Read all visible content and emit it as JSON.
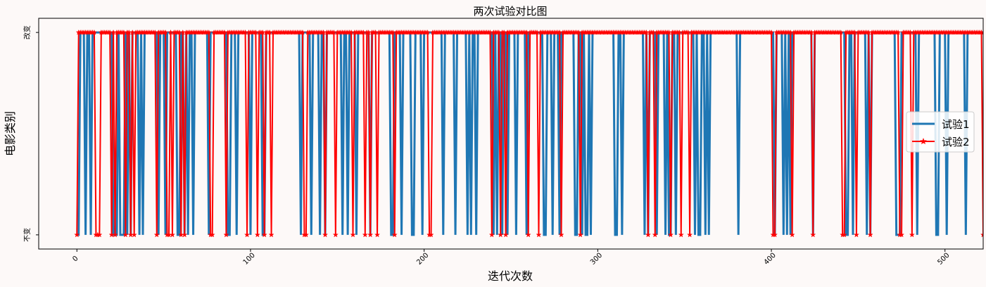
{
  "chart_data": {
    "type": "line",
    "title": "两次试验对比图",
    "xlabel": "迭代次数",
    "ylabel": "电影类别",
    "xlim": [
      -22,
      522
    ],
    "ylim": [
      -0.07,
      1.07
    ],
    "x_ticks": [
      0,
      100,
      200,
      300,
      400,
      500
    ],
    "y_ticks": [
      {
        "value": 0,
        "label": "不变"
      },
      {
        "value": 1,
        "label": "改变"
      }
    ],
    "legend_position": "center-right",
    "grid": false,
    "x_start": 0,
    "x_step": 1,
    "series": [
      {
        "name": "试验1",
        "color": "#1f77b4",
        "marker": "none",
        "values_bitstring": "0011101101111111111110001000101011110101111111101110111111001101011011111111011111111110011101111111011111100111111111111111111110111110111101101111111110110111101111111011111111111001111011111001111011111111111011111101111110101101111111110101101101111011111011111111100111011101111111100110100101111111111111001101111111111110101111011110100110111111111101001101011111111111111110111111111111111111110111101010111111111111011111111111111111100110111111101011111111111111000111111111011111111110011110111111111101111111111111111111111"
      },
      {
        "name": "试验2",
        "color": "#ff0000",
        "marker": "*",
        "values_bitstring": "0111111111100011111101011111011010111111111111011111001011110101111111111111100111111101111111111101111101110111011111111111111111100111111111101111101111111110111111011011101111111110111111111111111111100111111111111111111111111111111111101111011011111111111101111101111111111110111111111101111111111111111111111111111111111111101110111111110111110111101111111111111111111111111111111111111111111111100111111111011111111111011111111111111110011111101111111011111111111111110011111011111111111111111111111111111111111111110111111111"
      }
    ]
  }
}
